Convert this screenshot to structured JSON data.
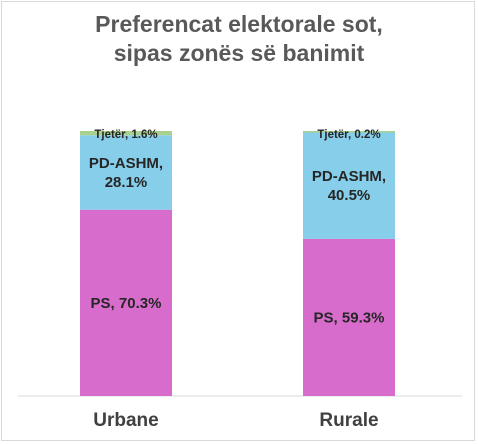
{
  "chart_data": {
    "type": "bar",
    "stacked": true,
    "title_lines": [
      "Preferencat elektorale sot,",
      "sipas zonës së banimit"
    ],
    "categories": [
      "Urbane",
      "Rurale"
    ],
    "series": [
      {
        "name": "PS",
        "values": [
          70.3,
          59.3
        ],
        "color": "#d86ccc",
        "labels": [
          [
            "PS, 70.3%"
          ],
          [
            "PS, 59.3%"
          ]
        ]
      },
      {
        "name": "PD-ASHM",
        "values": [
          28.1,
          40.5
        ],
        "color": "#87ceeb",
        "labels": [
          [
            "PD-ASHM,",
            "28.1%"
          ],
          [
            "PD-ASHM,",
            "40.5%"
          ]
        ]
      },
      {
        "name": "Tjetër",
        "values": [
          1.6,
          0.2
        ],
        "color": "#a9d18e",
        "labels": [
          [
            "Tjetër, 1.6%"
          ],
          [
            "Tjetër, 0.2%"
          ]
        ]
      }
    ],
    "ylim": [
      0,
      100
    ],
    "grid": false,
    "legend": "none"
  }
}
